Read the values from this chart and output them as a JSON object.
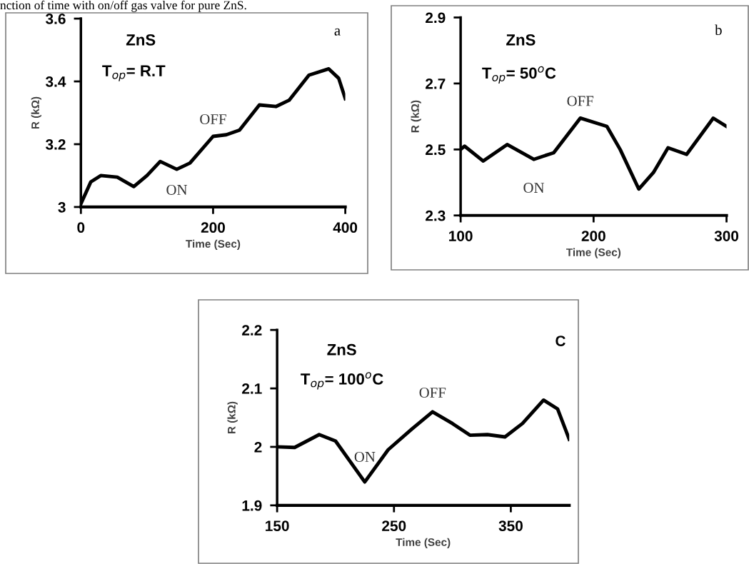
{
  "chart_data": [
    {
      "type": "line",
      "title": "nction of time with on/off gas valve for pure ZnS.",
      "xlabel": "Time (Sec)",
      "ylabel": "R (kΩ)",
      "x": [
        0,
        15,
        30,
        55,
        80,
        100,
        120,
        145,
        165,
        200,
        220,
        240,
        270,
        295,
        315,
        345,
        375,
        390,
        400
      ],
      "series": [
        {
          "color": "#000000",
          "values": [
            3.01,
            3.08,
            3.1,
            3.095,
            3.065,
            3.1,
            3.145,
            3.12,
            3.14,
            3.225,
            3.23,
            3.245,
            3.325,
            3.32,
            3.34,
            3.42,
            3.44,
            3.41,
            3.345
          ]
        }
      ],
      "xlim": [
        0,
        400
      ],
      "xticks": [
        0,
        200,
        400
      ],
      "ylim": [
        3,
        3.6
      ],
      "yticks": [
        3,
        3.2,
        3.4,
        3.6
      ],
      "grid": false,
      "legend": false,
      "marker": "none",
      "line_style": "solid",
      "annotations": [
        "ZnS",
        "T$_{op}$= R.T",
        "a",
        {
          "text": "OFF",
          "x": 200,
          "y": 3.225
        },
        {
          "text": "ON",
          "x": 145,
          "y": 3.12
        }
      ]
    },
    {
      "type": "line",
      "xlabel": "Time (Sec)",
      "ylabel": "R (kΩ)",
      "x": [
        100,
        103,
        117,
        135,
        155,
        170,
        190,
        210,
        220,
        234,
        245,
        256,
        270,
        290,
        300
      ],
      "series": [
        {
          "color": "#000000",
          "values": [
            2.5,
            2.51,
            2.465,
            2.515,
            2.47,
            2.49,
            2.595,
            2.57,
            2.5,
            2.38,
            2.43,
            2.505,
            2.485,
            2.595,
            2.57
          ]
        }
      ],
      "xlim": [
        100,
        300
      ],
      "xticks": [
        100,
        200,
        300
      ],
      "ylim": [
        2.3,
        2.9
      ],
      "yticks": [
        2.3,
        2.5,
        2.7,
        2.9
      ],
      "grid": false,
      "legend": false,
      "marker": "none",
      "line_style": "solid",
      "annotations": [
        "ZnS",
        "T$_{op}$= 50$^{o}$C",
        "b",
        {
          "text": "OFF",
          "x": 190,
          "y": 2.595
        },
        {
          "text": "ON",
          "x": 155,
          "y": 2.47
        }
      ]
    },
    {
      "type": "line",
      "xlabel": "Time (Sec)",
      "ylabel": "R (kΩ)",
      "x": [
        150,
        165,
        186,
        200,
        225,
        245,
        265,
        283,
        300,
        315,
        330,
        345,
        360,
        378,
        390,
        400
      ],
      "series": [
        {
          "color": "#000000",
          "values": [
            2.0,
            1.999,
            2.021,
            2.01,
            1.94,
            1.995,
            2.03,
            2.06,
            2.04,
            2.02,
            2.021,
            2.017,
            2.04,
            2.08,
            2.065,
            2.013
          ]
        }
      ],
      "xlim": [
        150,
        400
      ],
      "xticks": [
        150,
        250,
        350
      ],
      "ylim": [
        1.9,
        2.2
      ],
      "yticks": [
        1.9,
        2,
        2.1,
        2.2
      ],
      "grid": false,
      "legend": false,
      "marker": "none",
      "line_style": "solid",
      "annotations": [
        "ZnS",
        "T$_{op}$= 100$^{o}$C",
        "C",
        {
          "text": "OFF",
          "x": 283,
          "y": 2.06
        },
        {
          "text": "ON",
          "x": 225,
          "y": 1.94
        }
      ]
    }
  ]
}
